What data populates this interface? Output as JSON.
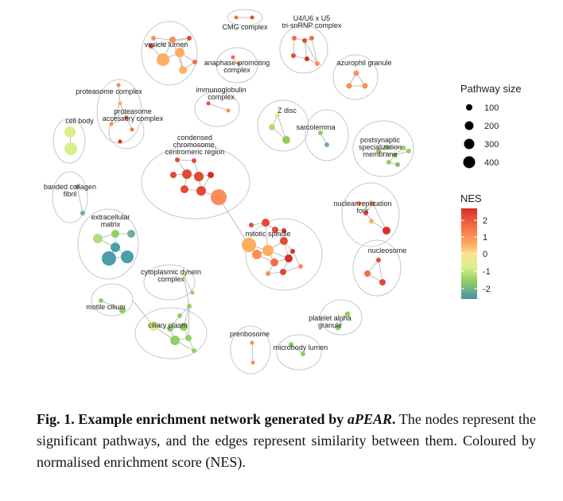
{
  "network": {
    "clusters": [
      {
        "label": "CMG complex"
      },
      {
        "label": "U4/U6 x U5\ntri-snRNP complex"
      },
      {
        "label": "vesicle lumen"
      },
      {
        "label": "anaphase-promoting\ncomplex"
      },
      {
        "label": "azurophil granule"
      },
      {
        "label": "proteasome complex"
      },
      {
        "label": "proteasome\naccessory complex"
      },
      {
        "label": "immunoglobulin\ncomplex"
      },
      {
        "label": "Z disc"
      },
      {
        "label": "cell body"
      },
      {
        "label": "sarcolemma"
      },
      {
        "label": "postsynaptic\nspecialization\nmembrane"
      },
      {
        "label": "condensed\nchromosome,\ncentromeric region"
      },
      {
        "label": "banded collagen\nfibril"
      },
      {
        "label": "nuclear replication\nfork"
      },
      {
        "label": "extracellular\nmatrix"
      },
      {
        "label": "mitotic spindle"
      },
      {
        "label": "nucleosome"
      },
      {
        "label": "cytoplasmic dynein\ncomplex"
      },
      {
        "label": "motile cilium"
      },
      {
        "label": "platelet alpha\ngranule"
      },
      {
        "label": "ciliary plasm"
      },
      {
        "label": "preribosome"
      },
      {
        "label": "microbody lumen"
      }
    ]
  },
  "legend": {
    "size_title": "Pathway size",
    "size_values": [
      "100",
      "200",
      "300",
      "400"
    ],
    "color_title": "NES",
    "color_ticks": [
      "2",
      "1",
      "0",
      "-1",
      "-2"
    ],
    "color_stops": [
      "#d73027",
      "#fc8d59",
      "#fee090",
      "#d9ef8b",
      "#91cf60",
      "#4a9fa8",
      "#4575b4"
    ]
  },
  "caption": {
    "fig_label": "Fig. 1. Example enrichment network generated by ",
    "tool_name": "aPEAR",
    "fig_label_end": ".",
    "body": " The nodes represent the significant pathways, and the edges represent similarity between them. Coloured by normalised enrichment score (NES)."
  }
}
